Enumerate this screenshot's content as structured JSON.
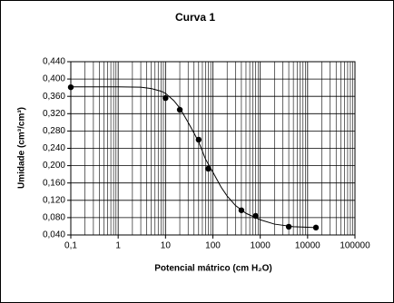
{
  "chart_data": {
    "type": "scatter",
    "title": "Curva 1",
    "x_label": "Potencial mátrico  (cm H₂O)",
    "y_label": "Umidade (cm³/cm³)",
    "x_log": true,
    "grid": true,
    "minor_grid": true,
    "xlim": [
      0.1,
      100000
    ],
    "ylim": [
      0.04,
      0.44
    ],
    "xticks": [
      {
        "value": 0.1,
        "label": "0,1"
      },
      1,
      10,
      100,
      1000,
      10000,
      100000
    ],
    "yticks": [
      {
        "value": 0.04,
        "label": "0,040"
      },
      {
        "value": 0.08,
        "label": "0,080"
      },
      {
        "value": 0.12,
        "label": "0,120"
      },
      {
        "value": 0.16,
        "label": "0,160"
      },
      {
        "value": 0.2,
        "label": "0,200"
      },
      {
        "value": 0.24,
        "label": "0,240"
      },
      {
        "value": 0.28,
        "label": "0,280"
      },
      {
        "value": 0.32,
        "label": "0,320"
      },
      {
        "value": 0.36,
        "label": "0,360"
      },
      {
        "value": 0.4,
        "label": "0,400"
      },
      {
        "value": 0.44,
        "label": "0,440"
      }
    ],
    "series": [
      {
        "type": "scatter",
        "color": "#000000",
        "x": [
          0.1,
          10,
          20,
          50,
          80,
          400,
          800,
          4000,
          15000
        ],
        "values": [
          0.381,
          0.356,
          0.329,
          0.26,
          0.193,
          0.097,
          0.084,
          0.059,
          0.057
        ]
      },
      {
        "type": "line",
        "color": "#000000",
        "x": [
          0.1,
          1,
          3,
          5,
          8,
          10,
          15,
          20,
          30,
          40,
          50,
          70,
          100,
          150,
          200,
          300,
          500,
          1000,
          2000,
          5000,
          15000
        ],
        "values": [
          0.382,
          0.382,
          0.381,
          0.378,
          0.372,
          0.367,
          0.35,
          0.333,
          0.3,
          0.275,
          0.255,
          0.215,
          0.185,
          0.15,
          0.13,
          0.108,
          0.09,
          0.075,
          0.065,
          0.059,
          0.057
        ]
      }
    ]
  }
}
